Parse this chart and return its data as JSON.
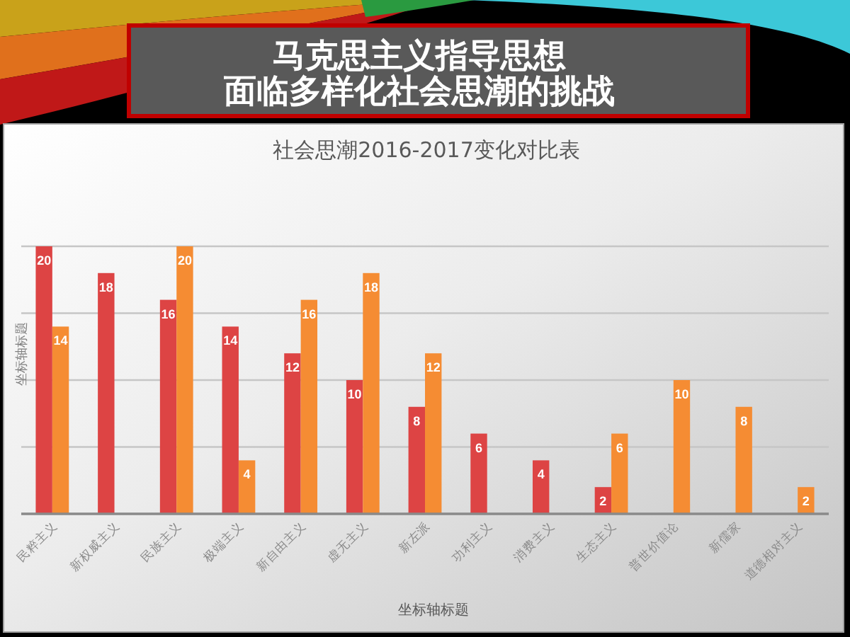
{
  "chart_data": {
    "type": "bar",
    "title": "马克思主义指导思想面临多样化社会思潮的挑战",
    "subtitle": "社会思潮2016-2017变化对比表",
    "xlabel": "坐标轴标题",
    "ylabel": "坐标轴标题",
    "categories": [
      "民粹主义",
      "新权威主义",
      "民族主义",
      "极端主义",
      "新自由主义",
      "虚无主义",
      "新左派",
      "功利主义",
      "消费主义",
      "生态主义",
      "普世价值论",
      "新儒家",
      "道德相对主义"
    ],
    "series": [
      {
        "color": "#dd4444",
        "values": [
          20,
          18,
          16,
          14,
          12,
          10,
          8,
          6,
          4,
          2,
          null,
          null,
          null
        ]
      },
      {
        "color": "#f58c33",
        "values": [
          14,
          null,
          20,
          4,
          16,
          18,
          12,
          null,
          null,
          6,
          10,
          8,
          2
        ]
      }
    ],
    "ylim": [
      0,
      20
    ],
    "yticks": [
      {
        "value": 0,
        "label": null
      },
      {
        "value": 5,
        "label": null
      },
      {
        "value": 10,
        "label": null
      },
      {
        "value": 15,
        "label": null
      },
      {
        "value": 20,
        "label": null
      }
    ],
    "grid": "y",
    "tick_labels": "x",
    "data_labels": true
  }
}
